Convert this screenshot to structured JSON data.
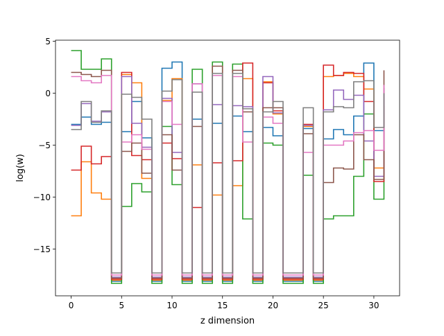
{
  "chart_data": {
    "type": "line",
    "step": "post",
    "title": "",
    "xlabel": "z dimension",
    "ylabel": "log(w)",
    "xlim": [
      -1.55,
      32.55
    ],
    "ylim": [
      -19.5,
      5.1
    ],
    "x_ticks": [
      0,
      5,
      10,
      15,
      20,
      25,
      30
    ],
    "y_ticks": [
      5,
      0,
      -5,
      -10,
      -15
    ],
    "x_tick_labels": [
      "0",
      "5",
      "10",
      "15",
      "20",
      "25",
      "30"
    ],
    "y_tick_labels": [
      "5",
      "0",
      "−5",
      "−10",
      "−15"
    ],
    "x": [
      0,
      1,
      2,
      3,
      4,
      5,
      6,
      7,
      8,
      9,
      10,
      11,
      12,
      13,
      14,
      15,
      16,
      17,
      18,
      19,
      20,
      21,
      22,
      23,
      24,
      25,
      26,
      27,
      28,
      29,
      30,
      31
    ],
    "series": [
      {
        "color": "#1f77b4",
        "values": [
          -3.0,
          -2.3,
          -3.0,
          -2.8,
          -18.1,
          -3.7,
          -0.8,
          -4.3,
          -18.1,
          2.4,
          3.0,
          -18.1,
          -2.5,
          -18.1,
          -2.9,
          -18.1,
          -2.2,
          -3.7,
          -18.1,
          -3.3,
          -4.1,
          -18.1,
          -18.1,
          -3.4,
          -18.1,
          -4.4,
          -3.5,
          -4.0,
          -2.2,
          2.9,
          -3.6,
          -3.2
        ]
      },
      {
        "color": "#ff7f0e",
        "values": [
          -11.8,
          -6.6,
          -9.6,
          -10.2,
          -18.0,
          1.8,
          1.0,
          -8.2,
          -18.0,
          -0.7,
          1.4,
          -18.0,
          -6.9,
          -18.0,
          -9.8,
          -18.0,
          -8.9,
          1.4,
          -18.0,
          1.1,
          -2.0,
          -18.0,
          -18.0,
          -3.2,
          -18.0,
          1.6,
          1.7,
          1.9,
          1.6,
          0.4,
          -7.2,
          -2.9
        ]
      },
      {
        "color": "#2ca02c",
        "values": [
          4.1,
          2.3,
          2.3,
          3.3,
          -18.3,
          -10.9,
          -8.7,
          -9.5,
          -18.3,
          -3.2,
          -8.8,
          -18.3,
          2.3,
          -18.3,
          3.0,
          -18.3,
          2.8,
          -12.1,
          -18.3,
          -4.8,
          -5.0,
          -18.3,
          -18.3,
          -7.9,
          -18.3,
          -12.1,
          -11.8,
          -11.8,
          -8.0,
          -2.0,
          -10.2,
          -1.9
        ]
      },
      {
        "color": "#d62728",
        "values": [
          -7.4,
          -5.1,
          -6.8,
          -6.1,
          -17.9,
          2.0,
          -6.0,
          -6.4,
          -17.9,
          -4.8,
          -6.3,
          -17.9,
          -11.0,
          -17.9,
          -6.7,
          -17.9,
          -6.5,
          2.9,
          -17.9,
          1.0,
          -1.7,
          -17.9,
          -17.9,
          -3.0,
          -17.9,
          2.7,
          1.7,
          2.0,
          1.9,
          -0.8,
          -8.5,
          -1.2
        ]
      },
      {
        "color": "#9467bd",
        "values": [
          -3.1,
          -1.0,
          -2.7,
          -1.8,
          -17.7,
          1.6,
          -2.9,
          -5.2,
          -17.7,
          -0.5,
          -5.7,
          -17.7,
          0.9,
          -17.7,
          -1.1,
          -17.7,
          -1.2,
          -1.3,
          -17.7,
          1.6,
          -1.9,
          -17.7,
          -17.7,
          -3.1,
          -17.7,
          -1.6,
          0.3,
          -0.6,
          -0.2,
          -4.6,
          -8.0,
          0.5
        ]
      },
      {
        "color": "#8c564b",
        "values": [
          2.0,
          1.8,
          1.6,
          2.2,
          -17.8,
          -5.6,
          -4.8,
          -7.7,
          -17.8,
          -4.0,
          -7.4,
          -17.8,
          -3.2,
          -17.8,
          2.6,
          -17.8,
          2.2,
          -1.8,
          -17.8,
          -1.4,
          -1.4,
          -17.8,
          -17.8,
          -3.9,
          -17.8,
          -8.6,
          -7.2,
          -7.3,
          -4.0,
          -6.4,
          -8.3,
          2.2
        ]
      },
      {
        "color": "#e377c2",
        "values": [
          1.6,
          1.2,
          1.0,
          1.7,
          -17.5,
          -4.7,
          -4.0,
          -5.4,
          -17.5,
          -0.8,
          -3.0,
          -17.5,
          0.9,
          -17.5,
          1.7,
          -17.5,
          1.6,
          -4.7,
          -17.5,
          -2.3,
          -2.9,
          -17.5,
          -17.5,
          -5.7,
          -17.5,
          -5.0,
          -5.0,
          -4.6,
          -3.8,
          -3.6,
          -5.5,
          0.8
        ]
      },
      {
        "color": "#7f7f7f",
        "values": [
          -3.5,
          -0.8,
          -2.8,
          -1.7,
          -17.3,
          -0.1,
          -0.4,
          -2.5,
          -17.3,
          0.2,
          1.3,
          -17.3,
          0.1,
          -17.3,
          1.9,
          -17.3,
          1.9,
          -1.5,
          -17.3,
          -1.8,
          -0.8,
          -17.3,
          -17.3,
          -1.4,
          -17.3,
          -1.8,
          -1.3,
          -1.4,
          1.1,
          1.2,
          -3.3,
          0.0
        ]
      }
    ]
  }
}
